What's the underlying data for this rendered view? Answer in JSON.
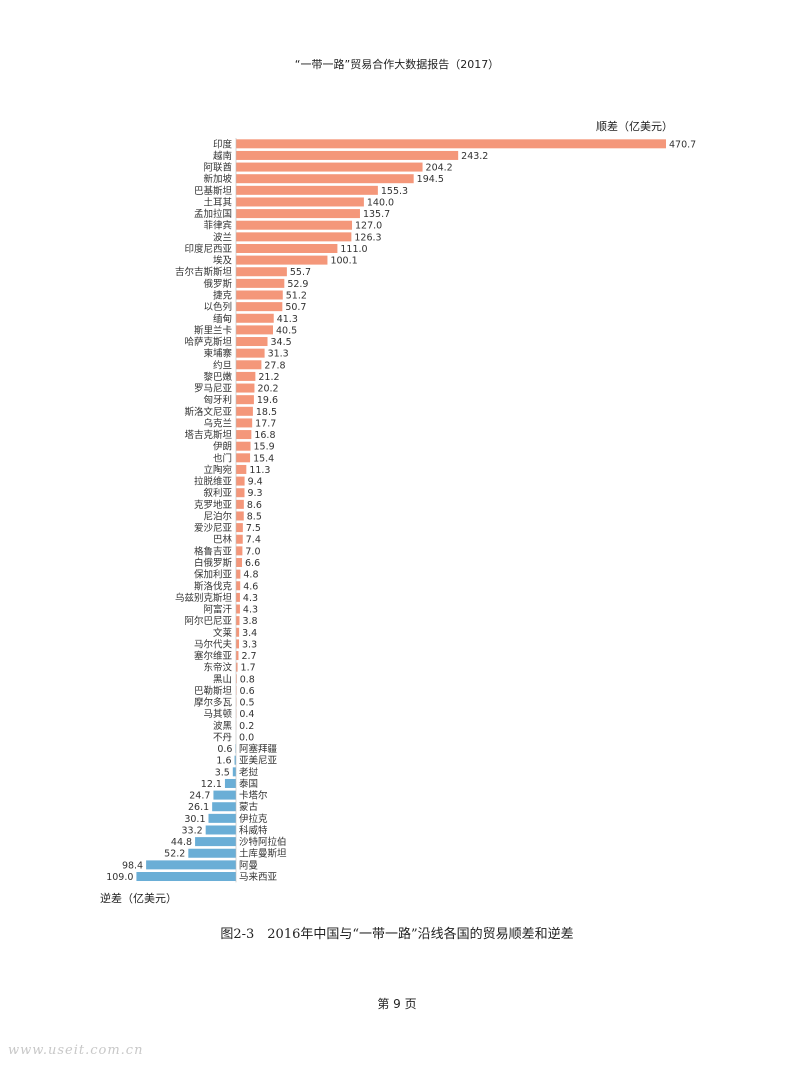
{
  "page": {
    "header": "“一带一路”贸易合作大数据报告（2017）",
    "caption": "图2-3　2016年中国与“一带一路”沿线各国的贸易顺差和逆差",
    "page_number": "第 9 页",
    "watermark": "www.useit.com.cn"
  },
  "chart_data": {
    "type": "bar",
    "orientation": "horizontal",
    "surplus_label": "顺差（亿美元）",
    "deficit_label": "逆差（亿美元）",
    "colors": {
      "surplus": "#f4977a",
      "deficit": "#6aaed6"
    },
    "categories": [
      "印度",
      "越南",
      "阿联酋",
      "新加坡",
      "巴基斯坦",
      "土耳其",
      "孟加拉国",
      "菲律宾",
      "波兰",
      "印度尼西亚",
      "埃及",
      "吉尔吉斯斯坦",
      "俄罗斯",
      "捷克",
      "以色列",
      "缅甸",
      "斯里兰卡",
      "哈萨克斯坦",
      "柬埔寨",
      "约旦",
      "黎巴嫩",
      "罗马尼亚",
      "匈牙利",
      "斯洛文尼亚",
      "乌克兰",
      "塔吉克斯坦",
      "伊朗",
      "也门",
      "立陶宛",
      "拉脱维亚",
      "叙利亚",
      "克罗地亚",
      "尼泊尔",
      "爱沙尼亚",
      "巴林",
      "格鲁吉亚",
      "白俄罗斯",
      "保加利亚",
      "斯洛伐克",
      "乌兹别克斯坦",
      "阿富汗",
      "阿尔巴尼亚",
      "文莱",
      "马尔代夫",
      "塞尔维亚",
      "东帝汶",
      "黑山",
      "巴勒斯坦",
      "摩尔多瓦",
      "马其顿",
      "波黑",
      "不丹",
      "阿塞拜疆",
      "亚美尼亚",
      "老挝",
      "泰国",
      "卡塔尔",
      "蒙古",
      "伊拉克",
      "科威特",
      "沙特阿拉伯",
      "土库曼斯坦",
      "阿曼",
      "马来西亚"
    ],
    "values": [
      470.7,
      243.2,
      204.2,
      194.5,
      155.3,
      140.0,
      135.7,
      127.0,
      126.3,
      111.0,
      100.1,
      55.7,
      52.9,
      51.2,
      50.7,
      41.3,
      40.5,
      34.5,
      31.3,
      27.8,
      21.2,
      20.2,
      19.6,
      18.5,
      17.7,
      16.8,
      15.9,
      15.4,
      11.3,
      9.4,
      9.3,
      8.6,
      8.5,
      7.5,
      7.4,
      7.0,
      6.6,
      4.8,
      4.6,
      4.3,
      4.3,
      3.8,
      3.4,
      3.3,
      2.7,
      1.7,
      0.8,
      0.6,
      0.5,
      0.4,
      0.2,
      0.0,
      -0.6,
      -1.6,
      -3.5,
      -12.1,
      -24.7,
      -26.1,
      -30.1,
      -33.2,
      -44.8,
      -52.2,
      -98.4,
      -109.0
    ],
    "value_labels": [
      "470.7",
      "243.2",
      "204.2",
      "194.5",
      "155.3",
      "140.0",
      "135.7",
      "127.0",
      "126.3",
      "111.0",
      "100.1",
      "55.7",
      "52.9",
      "51.2",
      "50.7",
      "41.3",
      "40.5",
      "34.5",
      "31.3",
      "27.8",
      "21.2",
      "20.2",
      "19.6",
      "18.5",
      "17.7",
      "16.8",
      "15.9",
      "15.4",
      "11.3",
      "9.4",
      "9.3",
      "8.6",
      "8.5",
      "7.5",
      "7.4",
      "7.0",
      "6.6",
      "4.8",
      "4.6",
      "4.3",
      "4.3",
      "3.8",
      "3.4",
      "3.3",
      "2.7",
      "1.7",
      "0.8",
      "0.6",
      "0.5",
      "0.4",
      "0.2",
      "0.0",
      "0.6",
      "1.6",
      "3.5",
      "12.1",
      "24.7",
      "26.1",
      "30.1",
      "33.2",
      "44.8",
      "52.2",
      "98.4",
      "109.0"
    ]
  }
}
